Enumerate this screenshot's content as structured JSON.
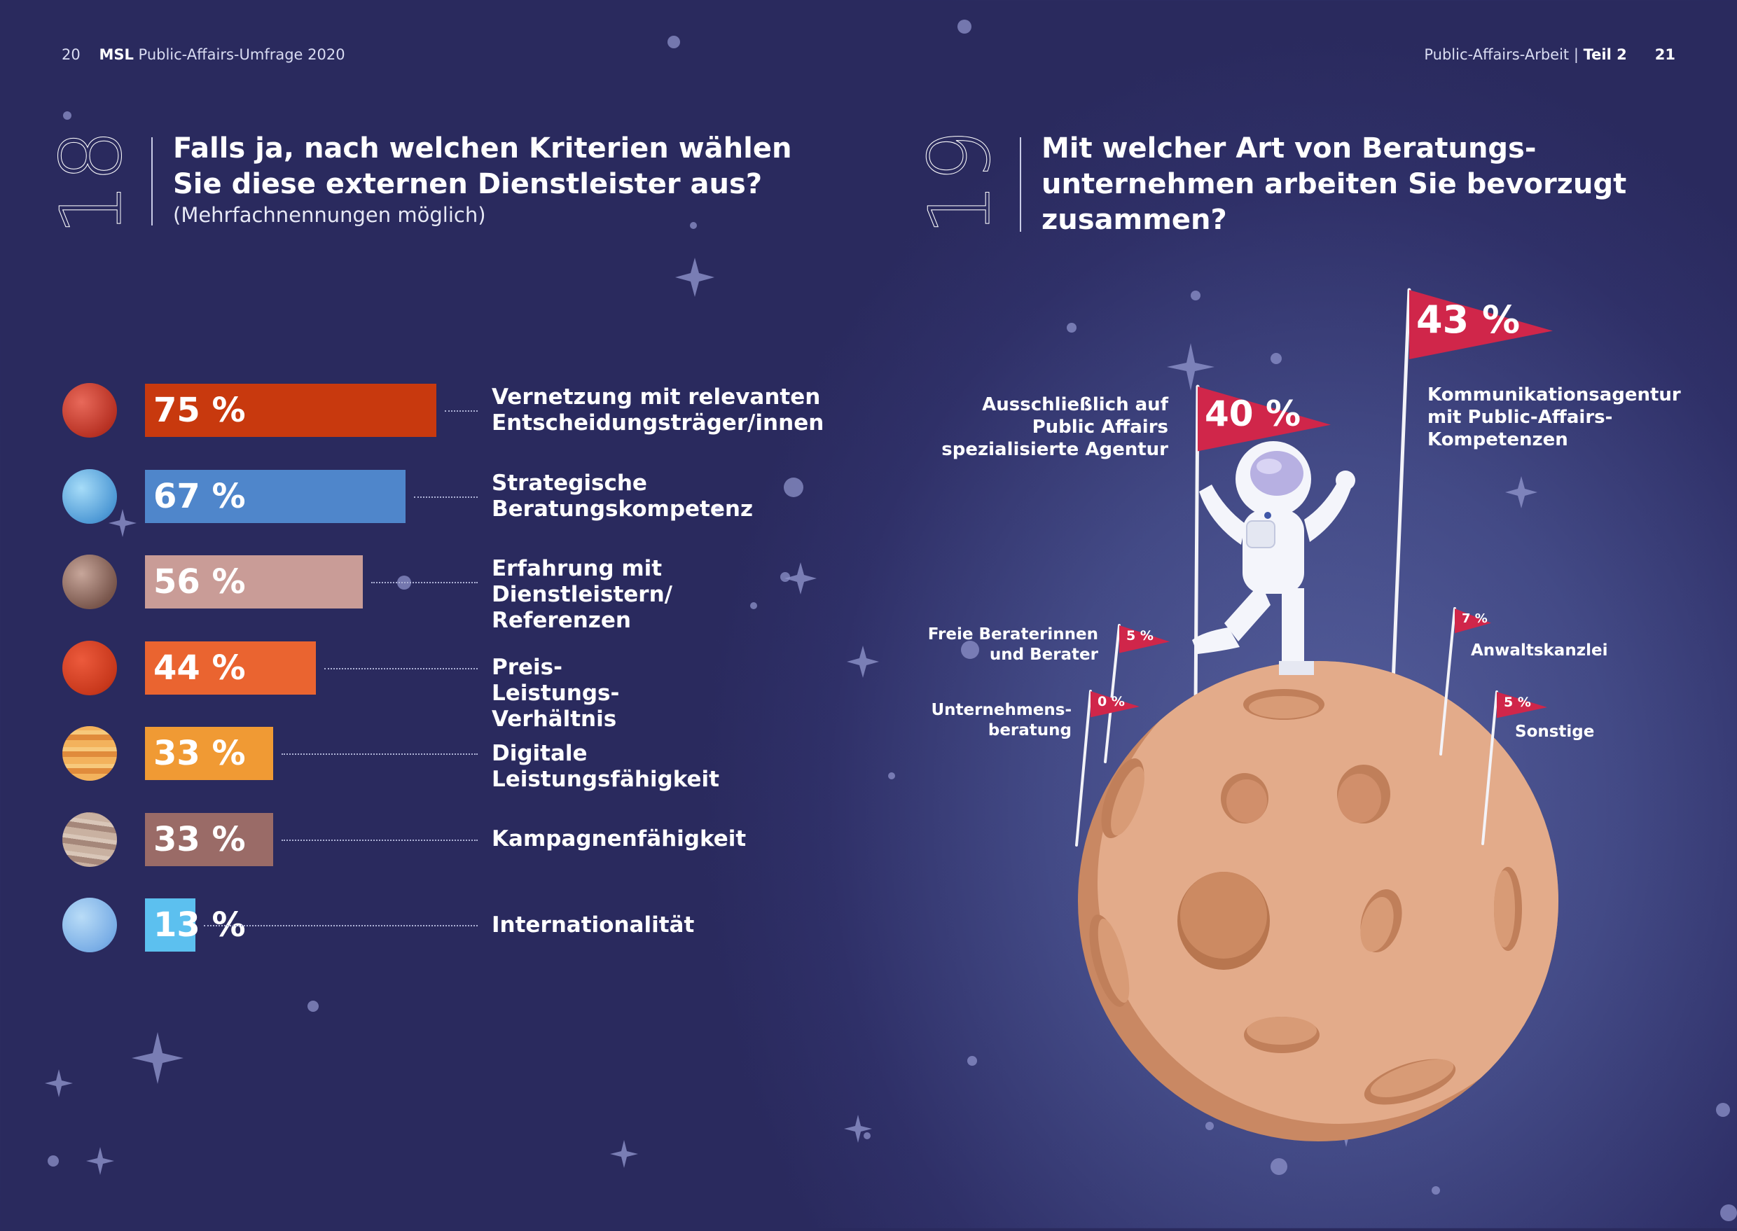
{
  "header": {
    "left_page_num": "20",
    "left_brand": "MSL",
    "left_title": "Public-Affairs-Umfrage 2020",
    "right_title": "Public-Affairs-Arbeit | ",
    "right_part": "Teil 2",
    "right_page_num": "21"
  },
  "q18": {
    "number": "18",
    "title": "Falls ja, nach welchen Kriterien wählen\nSie diese externen Dienstleister aus?",
    "subtitle": "(Mehrfachnennungen möglich)"
  },
  "q19": {
    "number": "19",
    "title": "Mit welcher Art von Beratungs-\nunternehmen arbeiten Sie bevorzugt\nzusammen?"
  },
  "colors": {
    "bar1": "#c8390e",
    "bar2": "#4f86cb",
    "bar3": "#c99c97",
    "bar4": "#ea6430",
    "bar5": "#f09a34",
    "bar6": "#9a6b67",
    "bar7": "#5cc0ef",
    "flag": "#d0264a",
    "moon": "#e0a988"
  },
  "chart_data": [
    {
      "type": "bar",
      "orientation": "horizontal",
      "categories": [
        "Vernetzung mit relevanten\nEntscheidungsträger/innen",
        "Strategische\nBeratungskompetenz",
        "Erfahrung mit Dienstleistern/\nReferenzen",
        "Preis-Leistungs-Verhältnis",
        "Digitale Leistungsfähigkeit",
        "Kampagnenfähigkeit",
        "Internationalität"
      ],
      "values": [
        75,
        67,
        56,
        44,
        33,
        33,
        13
      ],
      "value_labels": [
        "75 %",
        "67 %",
        "56 %",
        "44 %",
        "33 %",
        "33 %",
        "13 %"
      ],
      "unit": "%",
      "xlim": [
        0,
        75
      ]
    },
    {
      "type": "flags",
      "categories": [
        "Kommunikationsagentur\nmit Public-Affairs-\nKompetenzen",
        "Ausschließlich auf\nPublic Affairs\nspezialisierte Agentur",
        "Anwaltskanzlei",
        "Freie Beraterinnen\nund Berater",
        "Sonstige",
        "Unternehmens-\nberatung"
      ],
      "values": [
        43,
        40,
        7,
        5,
        5,
        0
      ],
      "value_labels": [
        "43 %",
        "40 %",
        "7 %",
        "5 %",
        "5 %",
        "0 %"
      ],
      "unit": "%"
    }
  ]
}
